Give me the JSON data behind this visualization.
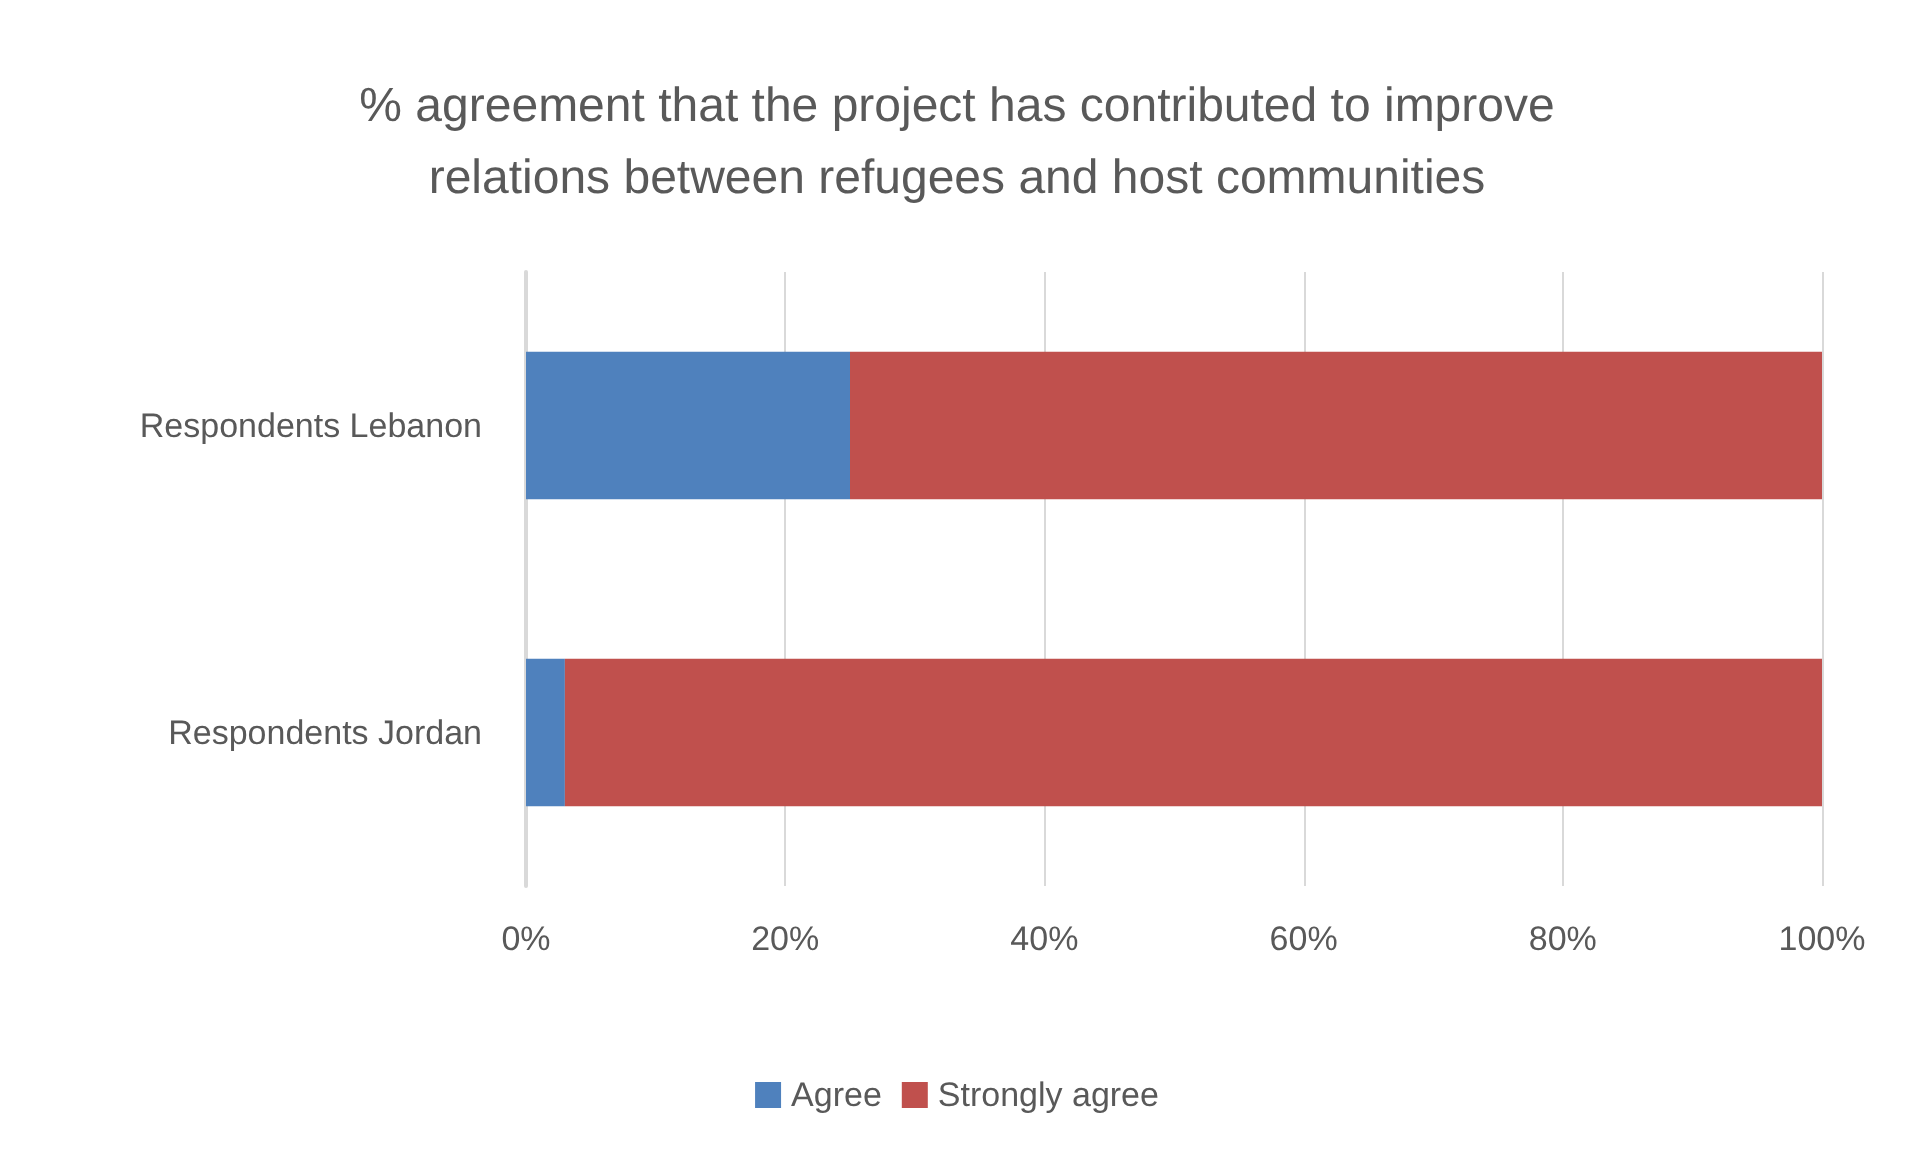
{
  "chart_data": {
    "type": "bar",
    "title": "% agreement that the project has contributed to improve\nrelations between refugees and host communities",
    "orientation": "horizontal",
    "stacked": true,
    "categories": [
      "Respondents Lebanon",
      "Respondents Jordan"
    ],
    "series": [
      {
        "name": "Agree",
        "color": "#4f81bd",
        "values": [
          25,
          3
        ]
      },
      {
        "name": "Strongly agree",
        "color": "#c0504d",
        "values": [
          75,
          97
        ]
      }
    ],
    "xlim": [
      0,
      100
    ],
    "xticks": [
      {
        "value": 0,
        "label": "0%"
      },
      {
        "value": 20,
        "label": "20%"
      },
      {
        "value": 40,
        "label": "40%"
      },
      {
        "value": 60,
        "label": "60%"
      },
      {
        "value": 80,
        "label": "80%"
      },
      {
        "value": 100,
        "label": "100%"
      }
    ],
    "grid": "x",
    "legend": "bottom"
  }
}
